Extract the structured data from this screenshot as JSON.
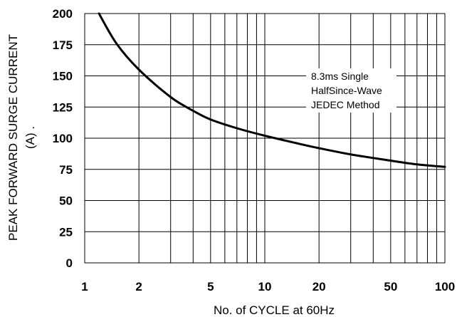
{
  "chart_data": {
    "type": "line",
    "title": "",
    "xlabel": "No. of CYCLE at 60Hz",
    "ylabel_lines": [
      "PEAK FORWARD SURGE CURRENT",
      "(A) ."
    ],
    "x_scale": "log",
    "xlim": [
      1,
      100
    ],
    "ylim": [
      0,
      200
    ],
    "x_ticks": [
      1,
      2,
      5,
      10,
      20,
      50,
      100
    ],
    "x_tick_labels": [
      "1",
      "2",
      "5",
      "10",
      "20",
      "50",
      "100"
    ],
    "y_ticks": [
      0,
      25,
      50,
      75,
      100,
      125,
      150,
      175,
      200
    ],
    "y_tick_labels": [
      "0",
      "25",
      "50",
      "75",
      "100",
      "125",
      "150",
      "175",
      "200"
    ],
    "grid": true,
    "legend": "none",
    "series": [
      {
        "color": "#000000",
        "x": [
          1.2,
          1.5,
          2,
          3,
          4,
          5,
          7,
          10,
          15,
          20,
          30,
          50,
          70,
          100
        ],
        "y": [
          200,
          176,
          155,
          133,
          122,
          115,
          108,
          102,
          96,
          92,
          87,
          82,
          79,
          77
        ]
      }
    ],
    "annotation": {
      "lines": [
        "8.3ms Single",
        "HalfSince-Wave",
        "JEDEC Method"
      ]
    }
  }
}
